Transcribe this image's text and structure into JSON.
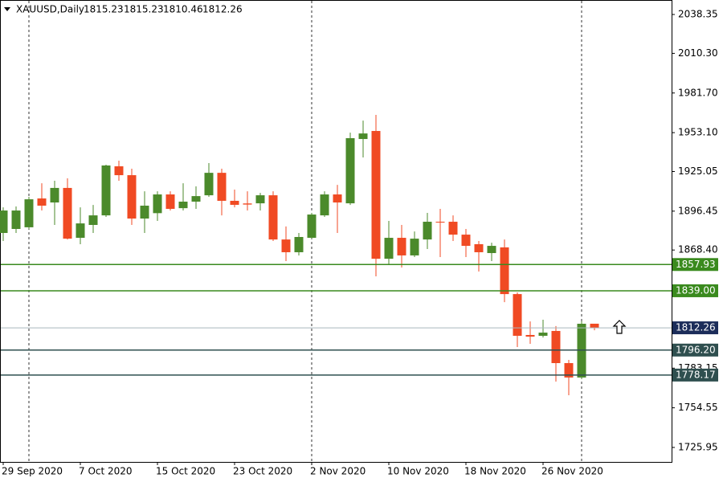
{
  "chart_data": {
    "type": "candlestick",
    "symbol": "XAUUSD,Daily",
    "categories": [
      "29 Sep 2020",
      null,
      null,
      null,
      null,
      null,
      "7 Oct 2020",
      null,
      null,
      null,
      null,
      null,
      "15 Oct 2020",
      null,
      null,
      null,
      null,
      null,
      "23 Oct 2020",
      null,
      null,
      null,
      null,
      null,
      "2 Nov 2020",
      null,
      null,
      null,
      null,
      null,
      "10 Nov 2020",
      null,
      null,
      null,
      null,
      null,
      "18 Nov 2020",
      null,
      null,
      null,
      null,
      null,
      "26 Nov 2020",
      null,
      null,
      null,
      null
    ],
    "open": [
      1880.7,
      1883.6,
      1884.8,
      1905.6,
      1902.7,
      1913.2,
      1877.2,
      1886.5,
      1893.4,
      1928.8,
      1922.4,
      1891.1,
      1895.0,
      1908.5,
      1898.6,
      1903.3,
      1907.9,
      1924.1,
      1903.9,
      1902.0,
      1902.1,
      1907.9,
      1876.0,
      1866.8,
      1877.2,
      1893.4,
      1908.5,
      1902.1,
      1948.5,
      1954.3,
      1862.1,
      1877.2,
      1864.5,
      1876.0,
      1888.8,
      1888.8,
      1879.5,
      1872.6,
      1866.2,
      1870.3,
      1836.6,
      1807.1,
      1806.5,
      1810.0,
      1786.8,
      1776.4,
      1815.23
    ],
    "high": [
      1899.2,
      1899.8,
      1906.8,
      1916.6,
      1918.4,
      1920.1,
      1899.2,
      1900.9,
      1930.0,
      1932.9,
      1927.1,
      1910.8,
      1910.8,
      1910.8,
      1916.6,
      1914.3,
      1931.1,
      1927.1,
      1912.0,
      1910.8,
      1909.6,
      1910.8,
      1885.4,
      1880.7,
      1895.2,
      1910.8,
      1915.4,
      1953.1,
      1961.8,
      1965.9,
      1889.4,
      1886.5,
      1881.8,
      1895.2,
      1898.1,
      1893.4,
      1883.6,
      1874.9,
      1873.7,
      1876.0,
      1837.8,
      1816.9,
      1818.1,
      1813.5,
      1789.1,
      1817.0,
      1815.23
    ],
    "low": [
      1874.9,
      1880.7,
      1883.6,
      1896.9,
      1886.5,
      1876.0,
      1872.6,
      1880.7,
      1892.3,
      1918.4,
      1886.5,
      1880.7,
      1889.4,
      1896.9,
      1896.9,
      1898.1,
      1906.8,
      1893.4,
      1899.2,
      1896.9,
      1896.9,
      1874.9,
      1860.4,
      1864.5,
      1876.6,
      1892.3,
      1880.7,
      1900.9,
      1935.2,
      1849.4,
      1857.5,
      1855.8,
      1863.3,
      1869.1,
      1863.3,
      1874.9,
      1863.3,
      1852.9,
      1860.4,
      1830.8,
      1798.4,
      1800.7,
      1805.3,
      1773.5,
      1763.6,
      1775.2,
      1810.46
    ],
    "close": [
      1896.9,
      1896.9,
      1905.0,
      1900.4,
      1913.2,
      1876.6,
      1887.6,
      1893.4,
      1929.4,
      1922.4,
      1891.1,
      1900.4,
      1908.5,
      1898.1,
      1903.3,
      1907.3,
      1924.1,
      1903.9,
      1901.0,
      1901.2,
      1907.9,
      1876.0,
      1866.8,
      1877.8,
      1894.0,
      1908.5,
      1902.7,
      1949.1,
      1952.5,
      1862.1,
      1877.2,
      1864.5,
      1876.6,
      1888.8,
      1888.2,
      1879.5,
      1871.4,
      1866.8,
      1871.4,
      1836.6,
      1806.5,
      1805.9,
      1808.8,
      1786.8,
      1776.4,
      1815.2,
      1812.26
    ],
    "up_color": "#4b8a2b",
    "down_color": "#f04a23",
    "ylim": [
      1715.5,
      2048.8
    ],
    "yticks": [
      1725.95,
      1754.55,
      1783.15,
      {
        "value": 1868.4,
        "label": "1868.40"
      },
      1896.45,
      {
        "value": 1925.05,
        "label": "1925.05"
      },
      {
        "value": 1953.1,
        "label": "1953.10"
      },
      {
        "value": 1981.7,
        "label": "1981.70"
      },
      {
        "value": 2010.3,
        "label": "2010.30"
      },
      2038.35
    ],
    "levels": [
      {
        "value": 1857.93,
        "color": "#3a8a1e"
      },
      {
        "value": {
          "value": 1839,
          "label": "1839.00"
        },
        "color": "#3a8a1e"
      },
      {
        "value": {
          "value": 1796.2,
          "label": "1796.20"
        },
        "color": "#2f4f4f"
      },
      {
        "value": 1778.17,
        "color": "#2f4f4f"
      }
    ],
    "current_price_color": "#1c2d5a"
  }
}
